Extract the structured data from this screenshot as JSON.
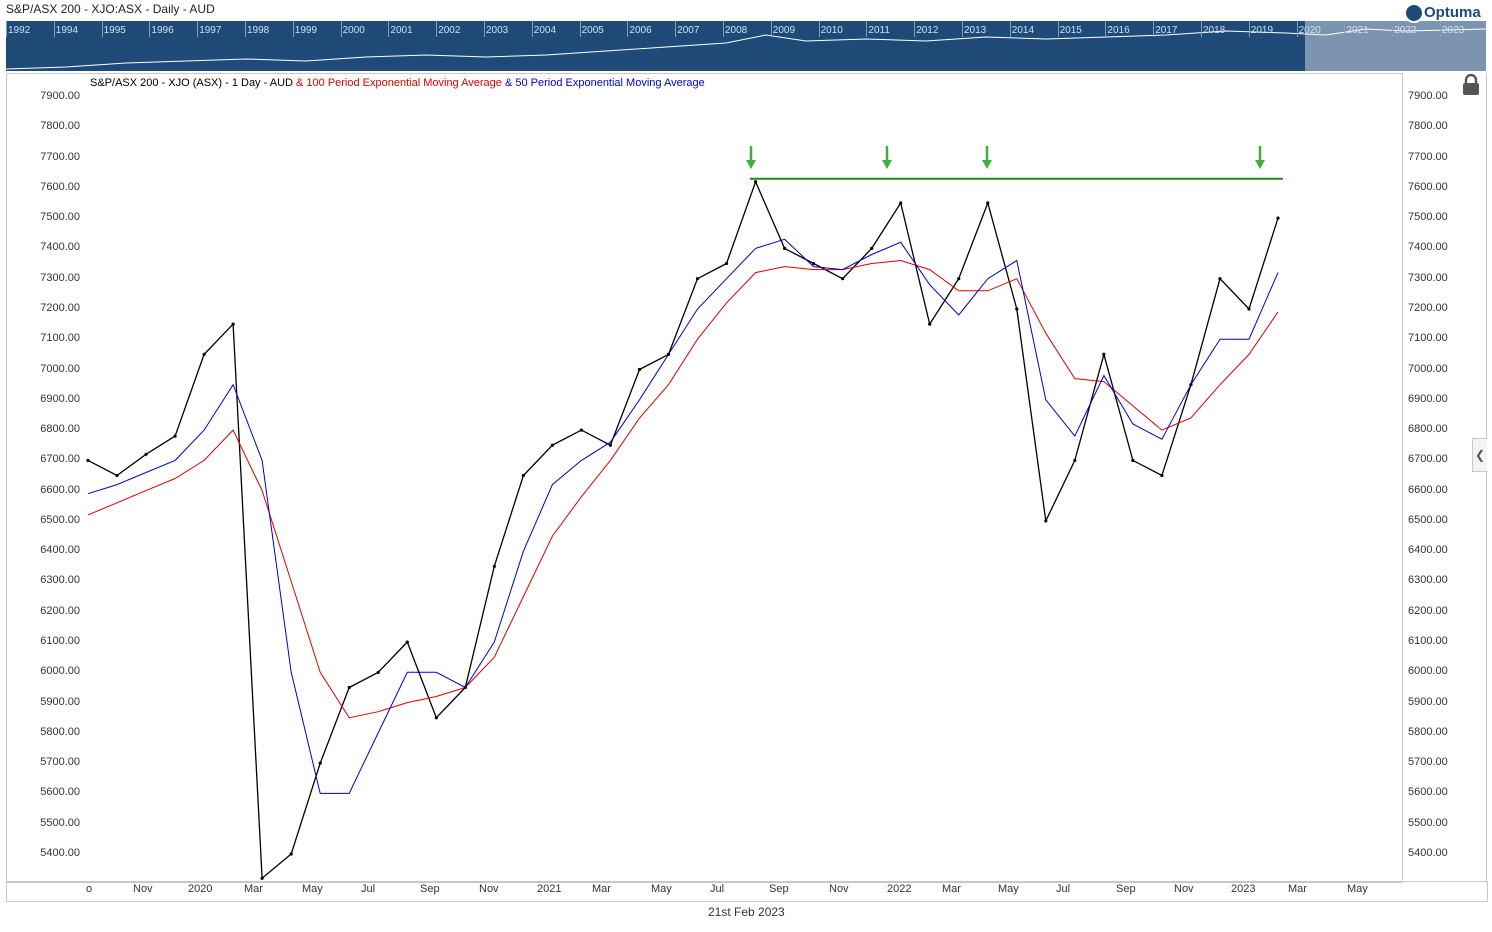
{
  "title": "S&P/ASX 200 - XJO:ASX - Daily - AUD",
  "navigator": {
    "years": [
      "1992",
      "1994",
      "1995",
      "1996",
      "1997",
      "1998",
      "1999",
      "2000",
      "2001",
      "2002",
      "2003",
      "2004",
      "2005",
      "2006",
      "2007",
      "2008",
      "2009",
      "2010",
      "2011",
      "2012",
      "2013",
      "2014",
      "2015",
      "2016",
      "2017",
      "2018",
      "2019",
      "2020",
      "2021",
      "2022",
      "2023"
    ]
  },
  "logo": {
    "text": "Optuma"
  },
  "legend": {
    "series_main": "S&P/ASX 200 - XJO (ASX) - 1 Day - AUD",
    "series_ema100": "& 100 Period Exponential Moving Average",
    "series_ema50": "& 50 Period Exponential Moving Average"
  },
  "y_ticks": [
    "7900.00",
    "7800.00",
    "7700.00",
    "7600.00",
    "7500.00",
    "7400.00",
    "7300.00",
    "7200.00",
    "7100.00",
    "7000.00",
    "6900.00",
    "6800.00",
    "6700.00",
    "6600.00",
    "6500.00",
    "6400.00",
    "6300.00",
    "6200.00",
    "6100.00",
    "6000.00",
    "5900.00",
    "5800.00",
    "5700.00",
    "5600.00",
    "5500.00",
    "5400.00"
  ],
  "x_ticks": [
    "o",
    "Nov",
    "2020",
    "Mar",
    "May",
    "Jul",
    "Sep",
    "Nov",
    "2021",
    "Mar",
    "May",
    "Jul",
    "Sep",
    "Nov",
    "2022",
    "Mar",
    "May",
    "Jul",
    "Sep",
    "Nov",
    "2023",
    "Mar",
    "May"
  ],
  "footer_date": "21st Feb 2023",
  "colors": {
    "price": "#000000",
    "ema100": "#e00000",
    "ema50": "#0000cc",
    "resistance": "#1a8a1a",
    "arrows": "#3fae3f",
    "navigator": "#1f4a78"
  },
  "chart_data": {
    "type": "line",
    "title": "S&P/ASX 200 - XJO (ASX) - 1 Day - AUD",
    "ylim": [
      5320,
      7960
    ],
    "resistance_level": 7630,
    "peak_arrows": [
      "Aug 2021",
      "Jan 2022",
      "Apr 2022",
      "Feb 2023"
    ],
    "x": [
      "2019-09",
      "2019-10",
      "2019-11",
      "2019-12",
      "2020-01",
      "2020-02",
      "2020-03",
      "2020-04",
      "2020-05",
      "2020-06",
      "2020-07",
      "2020-08",
      "2020-09",
      "2020-10",
      "2020-11",
      "2020-12",
      "2021-01",
      "2021-02",
      "2021-03",
      "2021-04",
      "2021-05",
      "2021-06",
      "2021-07",
      "2021-08",
      "2021-09",
      "2021-10",
      "2021-11",
      "2021-12",
      "2022-01",
      "2022-02",
      "2022-03",
      "2022-04",
      "2022-05",
      "2022-06",
      "2022-07",
      "2022-08",
      "2022-09",
      "2022-10",
      "2022-11",
      "2022-12",
      "2023-01",
      "2023-02"
    ],
    "series": [
      {
        "name": "S&P/ASX 200 - XJO (ASX) - 1 Day - AUD",
        "values": [
          6700,
          6650,
          6720,
          6780,
          7050,
          7150,
          5300,
          5400,
          5700,
          5950,
          6000,
          6100,
          5850,
          5950,
          6350,
          6650,
          6750,
          6800,
          6750,
          7000,
          7050,
          7300,
          7350,
          7620,
          7400,
          7350,
          7300,
          7400,
          7550,
          7150,
          7300,
          7550,
          7200,
          6500,
          6700,
          7050,
          6700,
          6650,
          6950,
          7300,
          7200,
          7500
        ]
      },
      {
        "name": "100 Period Exponential Moving Average",
        "values": [
          6520,
          6560,
          6600,
          6640,
          6700,
          6800,
          6600,
          6300,
          6000,
          5850,
          5870,
          5900,
          5920,
          5950,
          6050,
          6250,
          6450,
          6580,
          6700,
          6840,
          6950,
          7100,
          7220,
          7320,
          7340,
          7330,
          7330,
          7350,
          7360,
          7330,
          7260,
          7260,
          7300,
          7120,
          6970,
          6960,
          6880,
          6800,
          6840,
          6950,
          7050,
          7190
        ]
      },
      {
        "name": "50 Period Exponential Moving Average",
        "values": [
          6590,
          6620,
          6660,
          6700,
          6800,
          6950,
          6700,
          6000,
          5600,
          5600,
          5800,
          6000,
          6000,
          5950,
          6100,
          6400,
          6620,
          6700,
          6760,
          6900,
          7050,
          7200,
          7300,
          7400,
          7430,
          7340,
          7330,
          7380,
          7420,
          7280,
          7180,
          7300,
          7360,
          6900,
          6780,
          6980,
          6820,
          6770,
          6950,
          7100,
          7100,
          7320
        ]
      }
    ]
  }
}
